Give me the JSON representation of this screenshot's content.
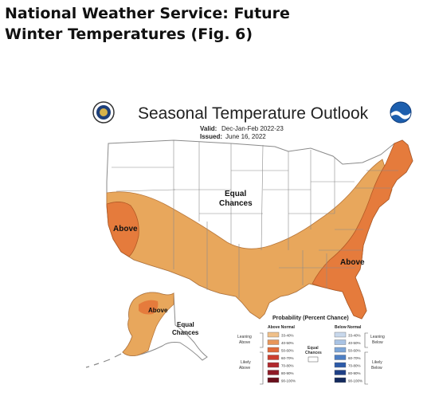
{
  "slide": {
    "title": "National Weather Service: Future\nWinter Temperatures (Fig. 6)"
  },
  "map": {
    "title": "Seasonal Temperature Outlook",
    "valid_label": "Valid:",
    "valid_value": "Dec-Jan-Feb 2022-23",
    "issued_label": "Issued:",
    "issued_value": "June 16, 2022",
    "region_labels": {
      "equal_chances_conus_1": "Equal",
      "equal_chances_conus_2": "Chances",
      "above_west": "Above",
      "above_east": "Above",
      "above_alaska": "Above",
      "equal_chances_alaska_1": "Equal",
      "equal_chances_alaska_2": "Chances"
    },
    "colors": {
      "above_33_40": "#e8a75c",
      "above_40_50": "#e57b3c",
      "land": "#ffffff",
      "boundary": "#8a8a8a",
      "noaa_blue": "#1d5fae"
    },
    "icons": {
      "left_logo": "doc-seal-icon",
      "right_logo": "noaa-logo-icon"
    }
  },
  "legend": {
    "title": "Probability (Percent Chance)",
    "above_header": "Above Normal",
    "below_header": "Below Normal",
    "leaning_above_1": "Leaning",
    "leaning_above_2": "Above",
    "likely_above_1": "Likely",
    "likely_above_2": "Above",
    "leaning_below_1": "Leaning",
    "leaning_below_2": "Below",
    "likely_below_1": "Likely",
    "likely_below_2": "Below",
    "equal_label_1": "Equal",
    "equal_label_2": "Chances",
    "above_bins": [
      {
        "label": "33-40%",
        "color": "#f0c08a"
      },
      {
        "label": "40-50%",
        "color": "#e8965a"
      },
      {
        "label": "50-60%",
        "color": "#e06a3a"
      },
      {
        "label": "60-70%",
        "color": "#cc3e2e"
      },
      {
        "label": "70-80%",
        "color": "#b0282c"
      },
      {
        "label": "80-90%",
        "color": "#8e1a26"
      },
      {
        "label": "90-100%",
        "color": "#6a0f1c"
      }
    ],
    "below_bins": [
      {
        "label": "33-40%",
        "color": "#c8d8ec"
      },
      {
        "label": "40-50%",
        "color": "#a9c3e4"
      },
      {
        "label": "50-60%",
        "color": "#7da6d8"
      },
      {
        "label": "60-70%",
        "color": "#4d7fc4"
      },
      {
        "label": "70-80%",
        "color": "#2c5aa8"
      },
      {
        "label": "80-90%",
        "color": "#1e3f86"
      },
      {
        "label": "90-100%",
        "color": "#142a5e"
      }
    ]
  }
}
